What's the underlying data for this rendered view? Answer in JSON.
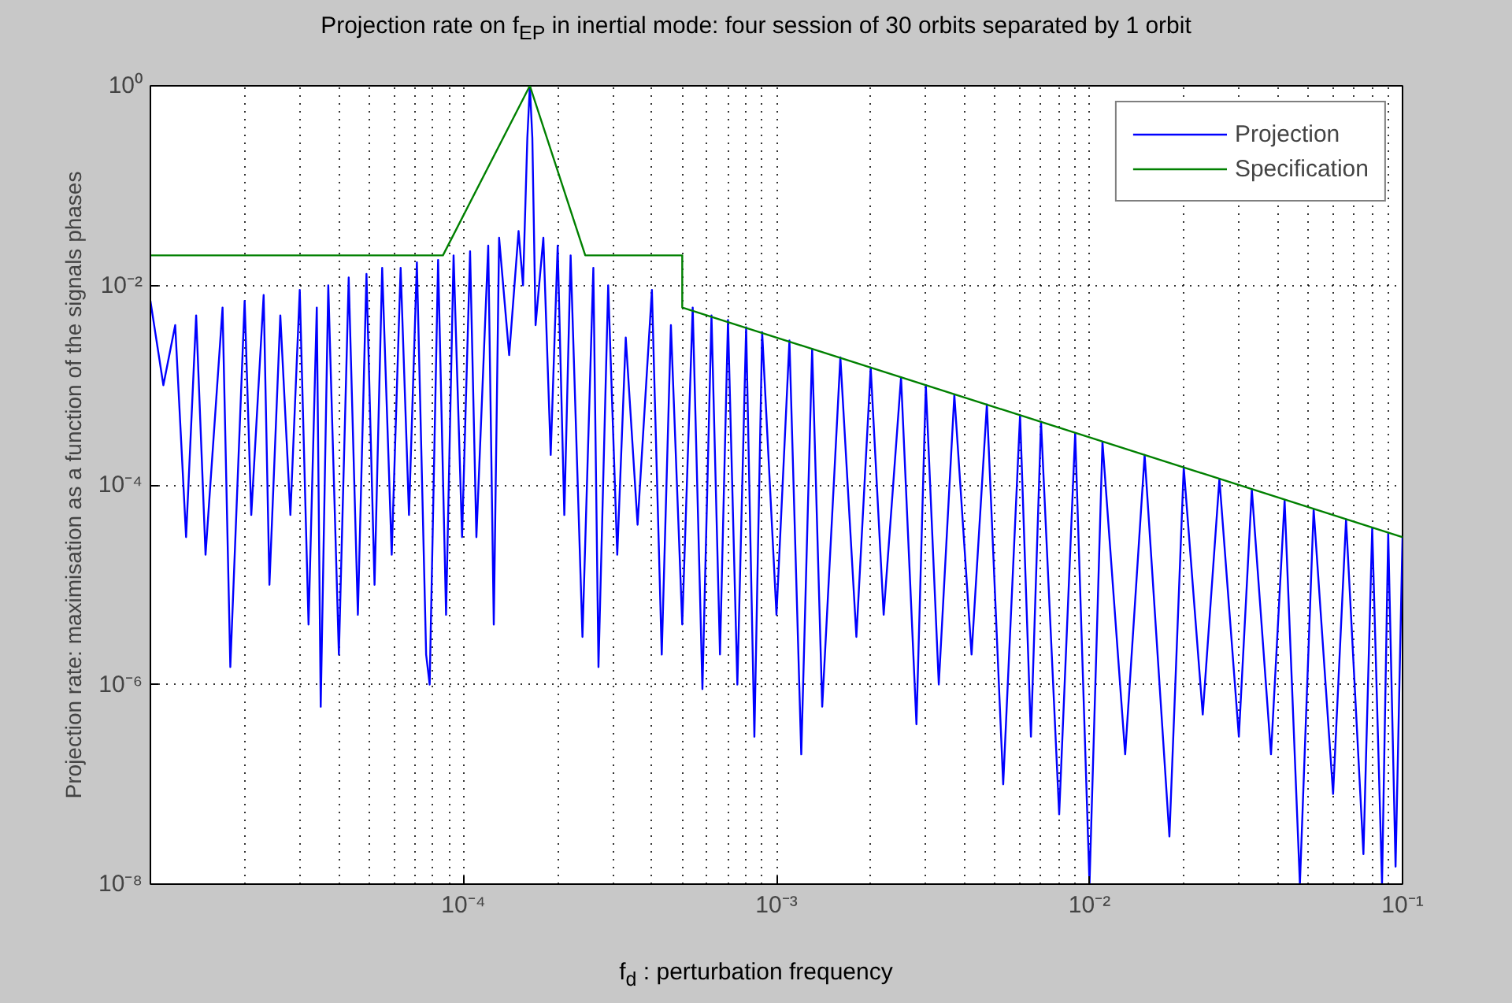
{
  "chart_data": {
    "type": "line",
    "title": "Projection rate on f$_{EP}$ in inertial mode: four session of 30 orbits separated by 1 orbit",
    "xlabel": "f$_{d}$ : perturbation frequency",
    "ylabel": "Projection rate: maximisation as a function of the signals phases",
    "log": "xy",
    "grid": true,
    "legend": "top right",
    "line_style": "solid",
    "xlim": [
      1e-05,
      0.1
    ],
    "ylim": [
      1e-08,
      1
    ],
    "xticks": [
      {
        "value": 0.0001,
        "label": "10⁻⁴"
      },
      {
        "value": 0.001,
        "label": "10⁻³"
      },
      {
        "value": 0.01,
        "label": "10⁻²"
      },
      {
        "value": 0.1,
        "label": "10⁻¹"
      }
    ],
    "yticks": [
      {
        "value": 1e-08,
        "label": "10⁻⁸"
      },
      {
        "value": 1e-06,
        "label": "10⁻⁶"
      },
      {
        "value": 0.0001,
        "label": "10⁻⁴"
      },
      {
        "value": 0.01,
        "label": "10⁻²"
      },
      {
        "value": 1,
        "label": "10⁰"
      }
    ],
    "series": [
      {
        "name": "Projection",
        "color": "#0000ff",
        "x": [
          1e-05,
          1.1e-05,
          1.2e-05,
          1.3e-05,
          1.4e-05,
          1.5e-05,
          1.7e-05,
          1.8e-05,
          2e-05,
          2.1e-05,
          2.3e-05,
          2.4e-05,
          2.6e-05,
          2.8e-05,
          3e-05,
          3.2e-05,
          3.4e-05,
          3.5e-05,
          3.7e-05,
          4e-05,
          4.3e-05,
          4.6e-05,
          4.9e-05,
          5.2e-05,
          5.5e-05,
          5.9e-05,
          6.3e-05,
          6.7e-05,
          7.1e-05,
          7.6e-05,
          7.8e-05,
          8.3e-05,
          8.8e-05,
          9.3e-05,
          9.9e-05,
          0.000105,
          0.00011,
          0.00012,
          0.000125,
          0.00013,
          0.00014,
          0.00015,
          0.000155,
          0.00016,
          0.000163,
          0.000166,
          0.00017,
          0.00018,
          0.00019,
          0.0002,
          0.00021,
          0.00022,
          0.00024,
          0.00026,
          0.00027,
          0.00029,
          0.00031,
          0.00033,
          0.00036,
          0.0004,
          0.00043,
          0.00046,
          0.0005,
          0.00054,
          0.00058,
          0.00062,
          0.00066,
          0.0007,
          0.00075,
          0.0008,
          0.00085,
          0.0009,
          0.001,
          0.0011,
          0.0012,
          0.0013,
          0.0014,
          0.0016,
          0.0018,
          0.002,
          0.0022,
          0.0025,
          0.0028,
          0.003,
          0.0033,
          0.0037,
          0.0042,
          0.0047,
          0.0053,
          0.006,
          0.0065,
          0.007,
          0.008,
          0.009,
          0.01,
          0.011,
          0.013,
          0.015,
          0.018,
          0.02,
          0.023,
          0.026,
          0.03,
          0.033,
          0.038,
          0.042,
          0.047,
          0.052,
          0.06,
          0.066,
          0.075,
          0.08,
          0.086,
          0.09,
          0.095,
          0.1
        ],
        "values": [
          0.007,
          0.001,
          0.004,
          3e-05,
          0.005,
          2e-05,
          0.006,
          1.5e-06,
          0.007,
          5e-05,
          0.008,
          1e-05,
          0.005,
          5e-05,
          0.009,
          4e-06,
          0.006,
          6e-07,
          0.01,
          2e-06,
          0.012,
          5e-06,
          0.013,
          1e-05,
          0.015,
          2e-05,
          0.015,
          5e-05,
          0.017,
          2e-06,
          1e-06,
          0.018,
          5e-06,
          0.02,
          3e-05,
          0.022,
          3e-05,
          0.025,
          4e-06,
          0.03,
          0.002,
          0.035,
          0.01,
          0.3,
          1,
          0.3,
          0.004,
          0.03,
          0.0002,
          0.025,
          5e-05,
          0.02,
          3e-06,
          0.015,
          1.5e-06,
          0.01,
          2e-05,
          0.003,
          4e-05,
          0.009,
          2e-06,
          0.004,
          4e-06,
          0.006,
          9e-07,
          0.005,
          2e-06,
          0.0045,
          1e-06,
          0.0038,
          3e-07,
          0.0034,
          5e-06,
          0.0028,
          2e-07,
          0.0023,
          6e-07,
          0.0019,
          3e-06,
          0.0015,
          5e-06,
          0.0012,
          4e-07,
          0.001,
          1e-06,
          0.0008,
          2e-06,
          0.00064,
          1e-07,
          0.0005,
          3e-07,
          0.00043,
          5e-08,
          0.00033,
          1e-08,
          0.00027,
          2e-07,
          0.0002,
          3e-08,
          0.00015,
          5e-07,
          0.000115,
          3e-07,
          9e-05,
          2e-07,
          7e-05,
          1e-08,
          5.7e-05,
          8e-08,
          4.5e-05,
          2e-08,
          3.7e-05,
          1e-08,
          3.3e-05,
          1.5e-08,
          3e-05
        ]
      },
      {
        "name": "Specification",
        "color": "#008000",
        "x": [
          1e-05,
          8.6e-05,
          0.000163,
          0.000245,
          0.0005,
          0.0005,
          0.1
        ],
        "values": [
          0.02,
          0.02,
          1,
          0.02,
          0.02,
          0.006,
          3e-05
        ]
      }
    ]
  }
}
